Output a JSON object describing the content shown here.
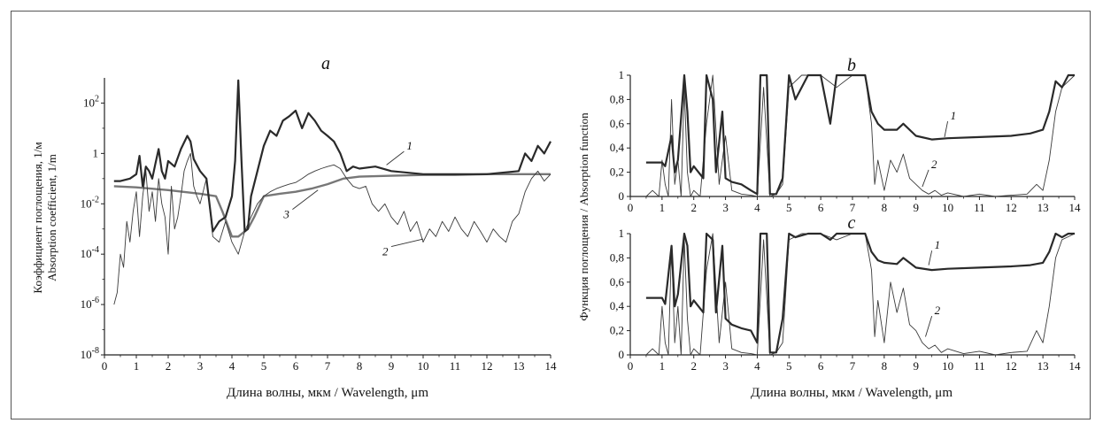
{
  "chart_data": [
    {
      "panel_letter": "a",
      "type": "line",
      "ylabel_lines": [
        "Коэффициент поглощения, 1/м",
        "Absorption coefficient, 1/m"
      ],
      "xlabel": "Длина волны, мкм / Wavelength, μm",
      "xlim": [
        0,
        14
      ],
      "ylim": [
        1e-08,
        1000
      ],
      "y_scale": "log",
      "x_ticks": [
        "0",
        "1",
        "2",
        "3",
        "4",
        "5",
        "6",
        "7",
        "8",
        "9",
        "10",
        "11",
        "12",
        "13",
        "14"
      ],
      "y_ticks": [
        {
          "base": "10",
          "exp": "-8",
          "value": 1e-08
        },
        {
          "base": "10",
          "exp": "-6",
          "value": 1e-06
        },
        {
          "base": "10",
          "exp": "-4",
          "value": 0.0001
        },
        {
          "base": "10",
          "exp": "-2",
          "value": 0.01
        },
        {
          "base": "1",
          "exp": "",
          "value": 1
        },
        {
          "base": "10",
          "exp": "2",
          "value": 100
        }
      ],
      "series": [
        {
          "name": "1",
          "style": "thick",
          "x": [
            0.3,
            0.5,
            0.8,
            1.0,
            1.1,
            1.2,
            1.3,
            1.4,
            1.5,
            1.6,
            1.7,
            1.8,
            1.9,
            2.0,
            2.2,
            2.4,
            2.6,
            2.7,
            2.8,
            3.0,
            3.2,
            3.4,
            3.6,
            3.8,
            4.0,
            4.1,
            4.2,
            4.3,
            4.4,
            4.5,
            4.6,
            4.8,
            5.0,
            5.2,
            5.4,
            5.6,
            5.8,
            6.0,
            6.2,
            6.4,
            6.6,
            6.8,
            7.0,
            7.2,
            7.4,
            7.6,
            7.8,
            8.0,
            8.5,
            9.0,
            10,
            11,
            12,
            13,
            13.2,
            13.4,
            13.6,
            13.8,
            14.0
          ],
          "y": [
            0.08,
            0.08,
            0.1,
            0.15,
            0.8,
            0.05,
            0.3,
            0.2,
            0.1,
            0.4,
            1.5,
            0.2,
            0.1,
            0.5,
            0.3,
            1.5,
            5,
            3,
            0.6,
            0.2,
            0.1,
            0.0008,
            0.002,
            0.003,
            0.02,
            0.5,
            800,
            0.5,
            0.0008,
            0.001,
            0.02,
            0.2,
            2,
            8,
            5,
            20,
            30,
            50,
            10,
            40,
            20,
            8,
            5,
            3,
            1,
            0.2,
            0.3,
            0.25,
            0.3,
            0.2,
            0.15,
            0.15,
            0.15,
            0.2,
            1,
            0.5,
            2,
            1,
            3
          ]
        },
        {
          "name": "2",
          "style": "thin",
          "x": [
            0.3,
            0.4,
            0.5,
            0.6,
            0.7,
            0.8,
            0.9,
            1.0,
            1.1,
            1.2,
            1.3,
            1.4,
            1.5,
            1.6,
            1.7,
            1.8,
            1.9,
            2.0,
            2.1,
            2.2,
            2.3,
            2.4,
            2.5,
            2.6,
            2.7,
            2.8,
            2.9,
            3.0,
            3.2,
            3.4,
            3.6,
            3.8,
            4.0,
            4.2,
            4.4,
            4.6,
            4.8,
            5.0,
            5.2,
            5.4,
            5.6,
            5.8,
            6.0,
            6.2,
            6.4,
            6.6,
            6.8,
            7.0,
            7.2,
            7.4,
            7.6,
            7.8,
            8.0,
            8.2,
            8.4,
            8.6,
            8.8,
            9.0,
            9.2,
            9.4,
            9.6,
            9.8,
            10.0,
            10.2,
            10.4,
            10.6,
            10.8,
            11.0,
            11.2,
            11.4,
            11.6,
            11.8,
            12.0,
            12.2,
            12.4,
            12.6,
            12.8,
            13.0,
            13.2,
            13.4,
            13.6,
            13.8,
            14.0
          ],
          "y": [
            1e-06,
            3e-06,
            0.0001,
            3e-05,
            0.002,
            0.0003,
            0.005,
            0.03,
            0.0005,
            0.02,
            0.2,
            0.005,
            0.03,
            0.002,
            0.1,
            0.01,
            0.003,
            0.0001,
            0.05,
            0.001,
            0.003,
            0.02,
            0.2,
            0.5,
            1,
            0.05,
            0.02,
            0.01,
            0.1,
            0.0005,
            0.0003,
            0.002,
            0.0003,
            0.0001,
            0.0008,
            0.003,
            0.01,
            0.02,
            0.03,
            0.04,
            0.05,
            0.06,
            0.07,
            0.1,
            0.15,
            0.2,
            0.25,
            0.3,
            0.35,
            0.25,
            0.1,
            0.05,
            0.04,
            0.05,
            0.01,
            0.005,
            0.01,
            0.003,
            0.0015,
            0.005,
            0.0008,
            0.002,
            0.0003,
            0.001,
            0.0005,
            0.002,
            0.0008,
            0.003,
            0.001,
            0.0005,
            0.002,
            0.0008,
            0.0003,
            0.001,
            0.0005,
            0.0003,
            0.002,
            0.004,
            0.03,
            0.1,
            0.2,
            0.08,
            0.15
          ]
        },
        {
          "name": "3",
          "style": "gray",
          "x": [
            0.3,
            1.0,
            2.0,
            3.0,
            3.5,
            3.7,
            4.0,
            4.2,
            4.5,
            4.7,
            5.0,
            5.5,
            6.0,
            6.5,
            7.0,
            7.5,
            8.0,
            9.0,
            10,
            11,
            12,
            13,
            14
          ],
          "y": [
            0.05,
            0.045,
            0.035,
            0.025,
            0.02,
            0.005,
            0.0005,
            0.0005,
            0.001,
            0.003,
            0.02,
            0.025,
            0.03,
            0.04,
            0.06,
            0.1,
            0.12,
            0.13,
            0.14,
            0.14,
            0.15,
            0.15,
            0.15
          ]
        }
      ],
      "annotations": [
        "1",
        "2",
        "3"
      ]
    },
    {
      "panel_letter": "b",
      "type": "line",
      "xlim": [
        0,
        14
      ],
      "ylim": [
        0,
        1
      ],
      "x_ticks": [
        "0",
        "1",
        "2",
        "3",
        "4",
        "5",
        "6",
        "7",
        "8",
        "9",
        "10",
        "11",
        "12",
        "13",
        "14"
      ],
      "y_ticks": [
        "0",
        "0,2",
        "0,4",
        "0,6",
        "0,8",
        "1"
      ],
      "series": [
        {
          "name": "1",
          "style": "thick",
          "x": [
            0.5,
            1.0,
            1.1,
            1.3,
            1.4,
            1.5,
            1.7,
            1.8,
            1.9,
            2.0,
            2.3,
            2.4,
            2.6,
            2.7,
            2.9,
            3.0,
            3.2,
            3.5,
            3.8,
            4.0,
            4.1,
            4.3,
            4.4,
            4.6,
            4.8,
            5.0,
            5.2,
            5.6,
            6.0,
            6.3,
            6.5,
            6.8,
            7.0,
            7.4,
            7.6,
            7.8,
            8.0,
            8.4,
            8.6,
            9.0,
            9.5,
            10,
            11,
            12,
            12.6,
            13.0,
            13.2,
            13.4,
            13.6,
            13.8,
            14.0
          ],
          "y": [
            0.28,
            0.28,
            0.25,
            0.5,
            0.2,
            0.3,
            1,
            0.7,
            0.2,
            0.25,
            0.15,
            1,
            0.8,
            0.2,
            0.7,
            0.15,
            0.12,
            0.1,
            0.05,
            0.02,
            1,
            1,
            0.02,
            0.02,
            0.15,
            1,
            0.8,
            1,
            1,
            0.6,
            1,
            1,
            1,
            1,
            0.7,
            0.6,
            0.55,
            0.55,
            0.6,
            0.5,
            0.47,
            0.48,
            0.49,
            0.5,
            0.52,
            0.55,
            0.7,
            0.95,
            0.9,
            1,
            1
          ]
        },
        {
          "name": "2",
          "style": "thin",
          "x": [
            0.5,
            0.7,
            0.9,
            1.0,
            1.1,
            1.2,
            1.3,
            1.4,
            1.5,
            1.6,
            1.7,
            1.8,
            1.9,
            2.0,
            2.2,
            2.4,
            2.6,
            2.8,
            3.0,
            3.2,
            3.5,
            3.8,
            4.0,
            4.2,
            4.4,
            4.6,
            4.8,
            5.0,
            5.4,
            6.0,
            6.5,
            7.0,
            7.4,
            7.6,
            7.7,
            7.8,
            8.0,
            8.2,
            8.4,
            8.6,
            8.8,
            9.0,
            9.2,
            9.4,
            9.6,
            9.8,
            10,
            10.5,
            11,
            11.5,
            12,
            12.5,
            12.8,
            13.0,
            13.2,
            13.4,
            13.6,
            14.0
          ],
          "y": [
            0,
            0.05,
            0,
            0.3,
            0.1,
            0,
            0.8,
            0.1,
            0.3,
            0,
            0.9,
            0.2,
            0,
            0.05,
            0,
            0.6,
            1,
            0.1,
            0.5,
            0.05,
            0.02,
            0.01,
            0,
            0.9,
            0,
            0.02,
            0.1,
            0.9,
            1,
            1,
            0.9,
            1,
            1,
            0.6,
            0.1,
            0.3,
            0.05,
            0.3,
            0.2,
            0.35,
            0.15,
            0.1,
            0.05,
            0.02,
            0.05,
            0.01,
            0.03,
            0,
            0.02,
            0,
            0.01,
            0.02,
            0.1,
            0.05,
            0.3,
            0.7,
            0.9,
            1
          ]
        }
      ],
      "annotations": [
        "1",
        "2"
      ]
    },
    {
      "panel_letter": "c",
      "type": "line",
      "ylabel": "Функция поглощения / Absorption function",
      "xlabel": "Длина волны, мкм / Wavelength, μm",
      "xlim": [
        0,
        14
      ],
      "ylim": [
        0,
        1
      ],
      "x_ticks": [
        "0",
        "1",
        "2",
        "3",
        "4",
        "5",
        "6",
        "7",
        "8",
        "9",
        "10",
        "11",
        "12",
        "13",
        "14"
      ],
      "y_ticks": [
        "0",
        "0,2",
        "0,4",
        "0,6",
        "0,8",
        "1"
      ],
      "series": [
        {
          "name": "1",
          "style": "thick",
          "x": [
            0.5,
            1.0,
            1.1,
            1.3,
            1.4,
            1.5,
            1.7,
            1.8,
            1.9,
            2.0,
            2.3,
            2.4,
            2.6,
            2.7,
            2.9,
            3.0,
            3.2,
            3.5,
            3.8,
            4.0,
            4.1,
            4.3,
            4.4,
            4.6,
            4.8,
            5.0,
            5.2,
            5.6,
            6.0,
            6.3,
            6.5,
            6.8,
            7.0,
            7.4,
            7.6,
            7.8,
            8.0,
            8.4,
            8.6,
            9.0,
            9.5,
            10,
            11,
            12,
            12.6,
            13.0,
            13.2,
            13.4,
            13.6,
            13.8,
            14.0
          ],
          "y": [
            0.47,
            0.47,
            0.42,
            0.9,
            0.4,
            0.5,
            1,
            0.9,
            0.4,
            0.45,
            0.35,
            1,
            0.95,
            0.35,
            0.9,
            0.3,
            0.25,
            0.22,
            0.2,
            0.1,
            1,
            1,
            0.02,
            0.02,
            0.3,
            1,
            0.97,
            1,
            1,
            0.95,
            1,
            1,
            1,
            1,
            0.85,
            0.78,
            0.76,
            0.75,
            0.8,
            0.72,
            0.7,
            0.71,
            0.72,
            0.73,
            0.74,
            0.76,
            0.85,
            1,
            0.97,
            1,
            1
          ]
        },
        {
          "name": "2",
          "style": "thin",
          "x": [
            0.5,
            0.7,
            0.9,
            1.0,
            1.1,
            1.2,
            1.3,
            1.4,
            1.5,
            1.6,
            1.7,
            1.8,
            1.9,
            2.0,
            2.2,
            2.4,
            2.6,
            2.8,
            3.0,
            3.2,
            3.5,
            3.8,
            4.0,
            4.2,
            4.4,
            4.6,
            4.8,
            5.0,
            5.4,
            6.0,
            6.5,
            7.0,
            7.4,
            7.6,
            7.7,
            7.8,
            8.0,
            8.2,
            8.4,
            8.6,
            8.8,
            9.0,
            9.2,
            9.4,
            9.6,
            9.8,
            10,
            10.5,
            11,
            11.5,
            12,
            12.5,
            12.8,
            13.0,
            13.2,
            13.4,
            13.6,
            14.0
          ],
          "y": [
            0,
            0.05,
            0,
            0.4,
            0.1,
            0,
            0.9,
            0.1,
            0.4,
            0,
            0.95,
            0.3,
            0,
            0.05,
            0,
            0.7,
            1,
            0.1,
            0.6,
            0.05,
            0.02,
            0.01,
            0,
            0.95,
            0,
            0.02,
            0.1,
            0.95,
            1,
            1,
            0.95,
            1,
            1,
            0.7,
            0.15,
            0.45,
            0.1,
            0.6,
            0.35,
            0.55,
            0.25,
            0.2,
            0.1,
            0.05,
            0.08,
            0.02,
            0.05,
            0.01,
            0.03,
            0,
            0.02,
            0.03,
            0.2,
            0.1,
            0.4,
            0.8,
            0.95,
            1
          ]
        }
      ],
      "annotations": [
        "1",
        "2"
      ]
    }
  ],
  "colors": {
    "thick": "#2a2a2a",
    "thin": "#3a3a3a",
    "gray": "#777777",
    "axis": "#222222"
  }
}
